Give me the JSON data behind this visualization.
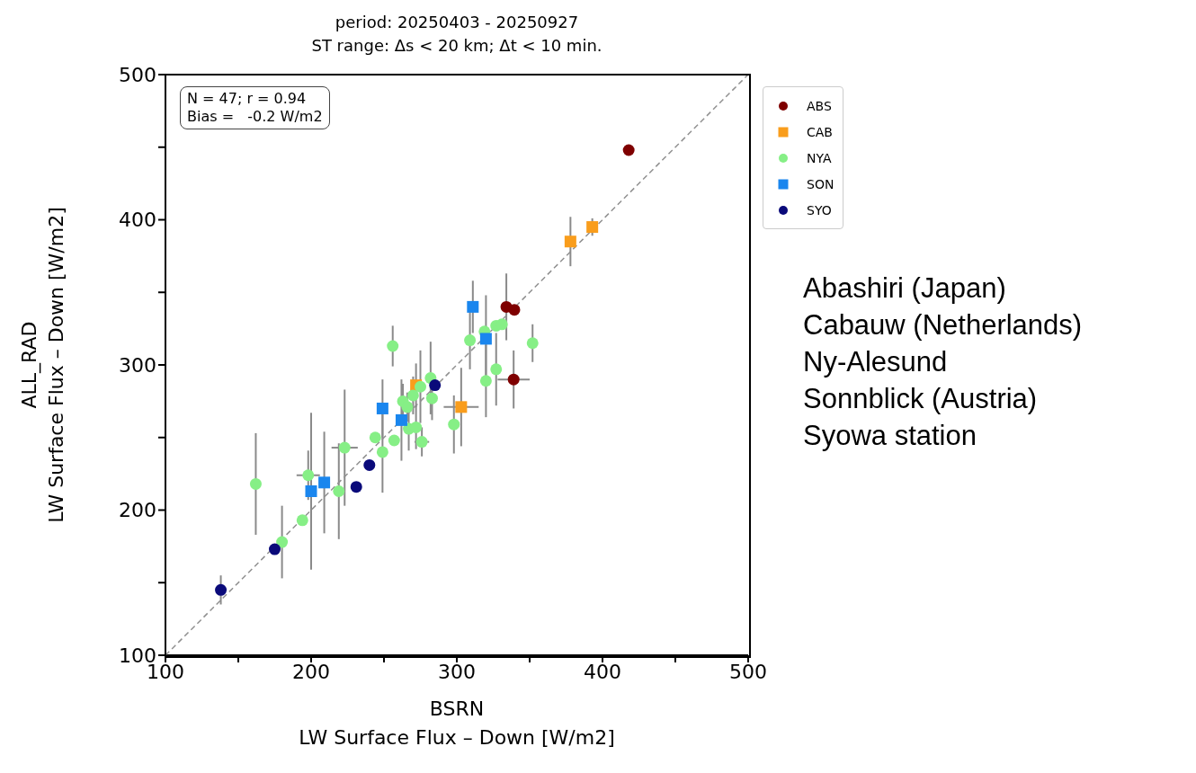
{
  "chart_data": {
    "type": "scatter",
    "title": "period: 20250403 - 20250927",
    "subtitle": "ST range: Δs < 20 km; Δt < 10 min.",
    "xlabel": "BSRN\nLW Surface Flux – Down [W/m2]",
    "ylabel": "ALL_RAD\nLW Surface Flux – Down [W/m2]",
    "annotations": [
      "N = 47; r = 0.94\nBias =   -0.2 W/m2",
      "Abashiri (Japan)",
      "Cabauw (Netherlands)",
      "Ny-Alesund",
      "Sonnblick (Austria)",
      "Syowa station"
    ],
    "xlim": [
      100,
      500
    ],
    "ylim": [
      100,
      500
    ],
    "xticks": [
      100,
      {
        "value": 150,
        "label": null
      },
      200,
      {
        "value": 250,
        "label": null
      },
      300,
      {
        "value": 350,
        "label": null
      },
      400,
      {
        "value": 450,
        "label": null
      },
      500
    ],
    "yticks": [
      100,
      {
        "value": 150,
        "label": null
      },
      200,
      {
        "value": 250,
        "label": null
      },
      300,
      {
        "value": 350,
        "label": null
      },
      400,
      {
        "value": 450,
        "label": null
      },
      500
    ],
    "legend": "right",
    "series": [
      {
        "type": "line",
        "color": "#909090",
        "line_style": "dashed",
        "x": [
          100,
          500
        ],
        "values": [
          100,
          500
        ]
      },
      {
        "name": "ABS",
        "color": "#7f0000",
        "marker": "circle",
        "x": [
          418,
          334,
          339.5,
          339
        ],
        "values": [
          448,
          340,
          338,
          290
        ],
        "errors": [
          null,
          23,
          null,
          20
        ],
        "xerrors": [
          null,
          null,
          null,
          11
        ]
      },
      {
        "name": "CAB",
        "color": "#f99d1c",
        "marker": "square",
        "x": [
          378,
          393,
          303,
          272
        ],
        "values": [
          385,
          395,
          271,
          286
        ],
        "errors": [
          17,
          6,
          27,
          15
        ],
        "xerrors": [
          null,
          null,
          12,
          null
        ]
      },
      {
        "name": "NYA",
        "color": "#86ef86",
        "marker": "circle",
        "x": [
          162,
          180,
          194,
          198,
          219,
          223,
          244,
          249,
          257,
          256,
          267,
          272,
          276,
          263,
          266,
          270,
          275,
          282,
          283,
          298,
          309,
          320,
          327,
          327,
          331,
          319,
          352
        ],
        "values": [
          218,
          178,
          193,
          224,
          213,
          243,
          250,
          240,
          248,
          313,
          256,
          257,
          247,
          275,
          271,
          279,
          285,
          291,
          277,
          259,
          317,
          289,
          297,
          327,
          328,
          323,
          315
        ],
        "errors": [
          35,
          25,
          null,
          17,
          33,
          40,
          null,
          28,
          null,
          14,
          15,
          15,
          10,
          12,
          10,
          13,
          25,
          25,
          15,
          20,
          20,
          25,
          25,
          null,
          null,
          null,
          13
        ],
        "xerrors": [
          null,
          null,
          null,
          8,
          null,
          9,
          null,
          null,
          null,
          null,
          null,
          null,
          5,
          null,
          null,
          null,
          null,
          null,
          null,
          null,
          null,
          null,
          null,
          null,
          null,
          null,
          null
        ]
      },
      {
        "name": "SON",
        "color": "#1a86ee",
        "marker": "square",
        "x": [
          311,
          320,
          249,
          262,
          200,
          209
        ],
        "values": [
          340,
          318,
          270,
          262,
          213,
          219
        ],
        "errors": [
          18,
          30,
          20,
          28,
          54,
          35
        ]
      },
      {
        "name": "SYO",
        "color": "#0a0a7a",
        "marker": "circle",
        "x": [
          138,
          175,
          231,
          240,
          285
        ],
        "values": [
          145,
          173,
          216,
          231,
          286
        ],
        "errors": [
          10,
          null,
          null,
          null,
          null
        ]
      }
    ]
  }
}
